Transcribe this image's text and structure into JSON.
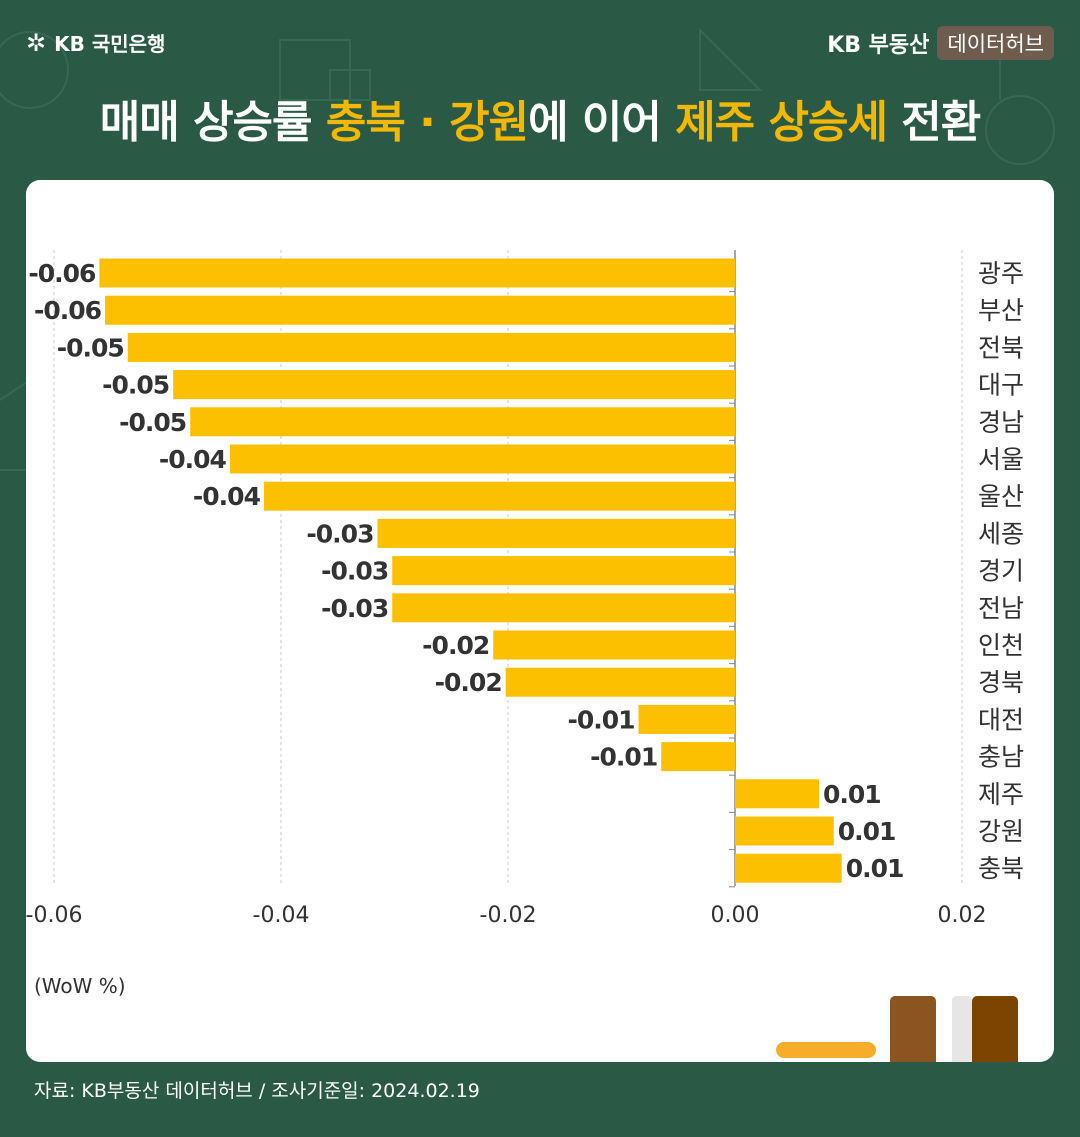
{
  "header": {
    "bank_logo_text": "KB 국민은행",
    "brand_name": "KB 부동산",
    "brand_tag": "데이터허브"
  },
  "title": {
    "part1": "매매 상승률 ",
    "hl1": "충북 · 강원",
    "part2": "에 이어 ",
    "hl2": "제주 상승세",
    "part3": " 전환"
  },
  "footer": {
    "source": "자료: KB부동산 데이터허브 / 조사기준일: 2024.02.19"
  },
  "colors": {
    "background": "#2a5a45",
    "bar": "#fcc000",
    "highlight": "#f5b800"
  },
  "chart_data": {
    "type": "bar",
    "orientation": "horizontal",
    "unit_label": "(WoW %)",
    "categories": [
      "광주",
      "부산",
      "전북",
      "대구",
      "경남",
      "서울",
      "울산",
      "세종",
      "경기",
      "전남",
      "인천",
      "경북",
      "대전",
      "충남",
      "제주",
      "강원",
      "충북"
    ],
    "values": [
      -0.056,
      -0.0555,
      -0.0535,
      -0.0495,
      -0.048,
      -0.0445,
      -0.0415,
      -0.0315,
      -0.0302,
      -0.0302,
      -0.0213,
      -0.0202,
      -0.0085,
      -0.0065,
      0.0074,
      0.0087,
      0.0094
    ],
    "value_labels": [
      "-0.06",
      "-0.06",
      "-0.05",
      "-0.05",
      "-0.05",
      "-0.04",
      "-0.04",
      "-0.03",
      "-0.03",
      "-0.03",
      "-0.02",
      "-0.02",
      "-0.01",
      "-0.01",
      "0.01",
      "0.01",
      "0.01"
    ],
    "x_ticks": [
      -0.06,
      -0.04,
      -0.02,
      0.0,
      0.02
    ],
    "x_tick_labels": [
      "-0.06",
      "-0.04",
      "-0.02",
      "0.00",
      "0.02"
    ],
    "xlim": [
      -0.06,
      0.02
    ],
    "grid": true
  }
}
